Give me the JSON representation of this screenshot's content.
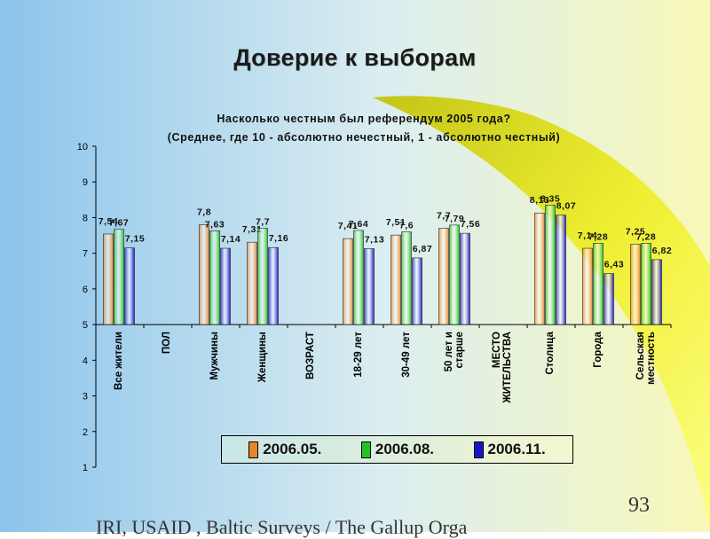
{
  "slide": {
    "title": "Доверие к выборам",
    "page_number": "93",
    "footer": "IRI, USAID , Baltic Surveys / The Gallup Orga"
  },
  "colors": {
    "series": [
      "#e8862a",
      "#22c422",
      "#1616c8"
    ],
    "background_left": "#8cc4ec",
    "background_right": "#f0f060",
    "accent_swoosh": "#d8d800"
  },
  "chart_data": {
    "type": "bar",
    "title": "Насколько честным был референдум 2005 года?",
    "subtitle": "(Среднее, где 10 - абсолютно нечестный, 1 - абсолютно честный)",
    "categories": [
      "Все жители",
      "ПОЛ",
      "Мужчины",
      "Женщины",
      "ВОЗРАСТ",
      "18-29 лет",
      "30-49 лет",
      "50 лет и старше",
      "МЕСТО ЖИТЕЛЬСТВА",
      "Столица",
      "Города",
      "Сельская местность"
    ],
    "series": [
      {
        "name": "2006.05.",
        "values": [
          7.54,
          null,
          7.8,
          7.31,
          null,
          7.41,
          7.51,
          7.7,
          null,
          8.13,
          7.14,
          7.25
        ]
      },
      {
        "name": "2006.08.",
        "values": [
          7.67,
          null,
          7.63,
          7.7,
          null,
          7.64,
          7.6,
          7.79,
          null,
          8.35,
          7.28,
          7.28
        ]
      },
      {
        "name": "2006.11.",
        "values": [
          7.15,
          null,
          7.14,
          7.16,
          null,
          7.13,
          6.87,
          7.56,
          null,
          8.07,
          6.43,
          6.82
        ]
      }
    ],
    "value_labels": [
      [
        "7,54",
        null,
        "7,8",
        "7,31",
        null,
        "7,41",
        "7,51",
        "7,7",
        null,
        "8,13",
        "7,14",
        "7,25"
      ],
      [
        "7,67",
        null,
        "7,63",
        "7,7",
        null,
        "7,64",
        "7,6",
        "7,79",
        null,
        "8,35",
        "7,28",
        "7,28"
      ],
      [
        "7,15",
        null,
        "7,14",
        "7,16",
        null,
        "7,13",
        "6,87",
        "7,56",
        null,
        "8,07",
        "6,43",
        "6,82"
      ]
    ],
    "y_ticks": [
      "1",
      "2",
      "3",
      "4",
      "5",
      "6",
      "7",
      "8",
      "9",
      "10"
    ],
    "ylim": [
      1,
      10
    ],
    "x_axis_crosses_at": 5,
    "grid": false,
    "legend_position": "bottom-center"
  }
}
